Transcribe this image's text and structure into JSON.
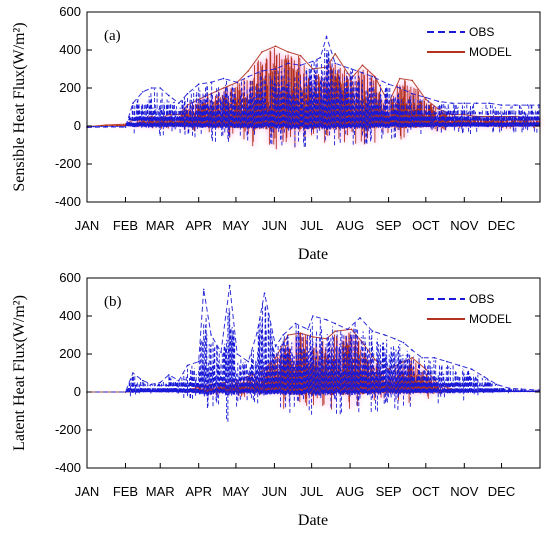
{
  "chart_data": [
    {
      "type": "line",
      "panel_label": "(a)",
      "xlabel": "Date",
      "ylabel": "Sensible Heat Flux(W/m²)",
      "ylim": [
        -400,
        600
      ],
      "yticks": [
        -400,
        -200,
        0,
        200,
        400,
        600
      ],
      "months": [
        "JAN",
        "FEB",
        "MAR",
        "APR",
        "MAY",
        "JUN",
        "JUL",
        "AUG",
        "SEP",
        "OCT",
        "NOV",
        "DEC"
      ],
      "legend": {
        "position": "top-right"
      },
      "series": [
        {
          "name": "OBS",
          "color": "#1a1ad6",
          "style": "dashed",
          "values": [
            [
              0,
              -8
            ],
            [
              15,
              -5
            ],
            [
              31,
              -6
            ],
            [
              37,
              120
            ],
            [
              45,
              180
            ],
            [
              52,
              200
            ],
            [
              59,
              200
            ],
            [
              66,
              160
            ],
            [
              74,
              120
            ],
            [
              81,
              170
            ],
            [
              90,
              220
            ],
            [
              100,
              230
            ],
            [
              110,
              250
            ],
            [
              121,
              230
            ],
            [
              130,
              260
            ],
            [
              141,
              290
            ],
            [
              152,
              300
            ],
            [
              162,
              330
            ],
            [
              172,
              320
            ],
            [
              182,
              340
            ],
            [
              188,
              360
            ],
            [
              193,
              470
            ],
            [
              200,
              330
            ],
            [
              213,
              300
            ],
            [
              222,
              280
            ],
            [
              230,
              260
            ],
            [
              243,
              220
            ],
            [
              252,
              200
            ],
            [
              262,
              170
            ],
            [
              273,
              150
            ],
            [
              283,
              130
            ],
            [
              294,
              120
            ],
            [
              304,
              120
            ],
            [
              314,
              120
            ],
            [
              324,
              120
            ],
            [
              334,
              110
            ],
            [
              345,
              110
            ],
            [
              355,
              110
            ],
            [
              364,
              110
            ]
          ]
        },
        {
          "name": "MODEL",
          "color": "#b4321e",
          "style": "solid",
          "values": [
            [
              0,
              -4
            ],
            [
              15,
              5
            ],
            [
              31,
              10
            ],
            [
              37,
              30
            ],
            [
              45,
              40
            ],
            [
              52,
              50
            ],
            [
              59,
              40
            ],
            [
              66,
              60
            ],
            [
              74,
              60
            ],
            [
              81,
              110
            ],
            [
              90,
              140
            ],
            [
              100,
              170
            ],
            [
              110,
              200
            ],
            [
              121,
              230
            ],
            [
              130,
              290
            ],
            [
              141,
              390
            ],
            [
              152,
              420
            ],
            [
              162,
              390
            ],
            [
              172,
              370
            ],
            [
              182,
              300
            ],
            [
              193,
              310
            ],
            [
              200,
              380
            ],
            [
              213,
              250
            ],
            [
              222,
              320
            ],
            [
              232,
              260
            ],
            [
              243,
              120
            ],
            [
              252,
              250
            ],
            [
              262,
              240
            ],
            [
              273,
              140
            ],
            [
              283,
              90
            ],
            [
              294,
              60
            ],
            [
              304,
              60
            ],
            [
              314,
              50
            ],
            [
              324,
              50
            ],
            [
              334,
              50
            ],
            [
              345,
              50
            ],
            [
              355,
              45
            ],
            [
              364,
              40
            ]
          ]
        }
      ]
    },
    {
      "type": "line",
      "panel_label": "(b)",
      "xlabel": "Date",
      "ylabel": "Latent Heat Flux(W/m²)",
      "ylim": [
        -400,
        600
      ],
      "yticks": [
        -400,
        -200,
        0,
        200,
        400,
        600
      ],
      "months": [
        "JAN",
        "FEB",
        "MAR",
        "APR",
        "MAY",
        "JUN",
        "JUL",
        "AUG",
        "SEP",
        "OCT",
        "NOV",
        "DEC"
      ],
      "legend": {
        "position": "top-right"
      },
      "series": [
        {
          "name": "OBS",
          "color": "#1a1ad6",
          "style": "dashed",
          "values": [
            [
              0,
              0
            ],
            [
              31,
              0
            ],
            [
              37,
              100
            ],
            [
              45,
              60
            ],
            [
              52,
              40
            ],
            [
              59,
              50
            ],
            [
              66,
              90
            ],
            [
              74,
              60
            ],
            [
              81,
              140
            ],
            [
              90,
              160
            ],
            [
              94,
              540
            ],
            [
              100,
              300
            ],
            [
              108,
              210
            ],
            [
              115,
              560
            ],
            [
              121,
              200
            ],
            [
              130,
              160
            ],
            [
              137,
              310
            ],
            [
              143,
              520
            ],
            [
              152,
              240
            ],
            [
              158,
              300
            ],
            [
              168,
              360
            ],
            [
              178,
              330
            ],
            [
              182,
              400
            ],
            [
              193,
              380
            ],
            [
              200,
              360
            ],
            [
              210,
              330
            ],
            [
              220,
              390
            ],
            [
              230,
              320
            ],
            [
              240,
              300
            ],
            [
              248,
              280
            ],
            [
              255,
              260
            ],
            [
              262,
              220
            ],
            [
              270,
              180
            ],
            [
              280,
              180
            ],
            [
              290,
              160
            ],
            [
              300,
              140
            ],
            [
              310,
              120
            ],
            [
              320,
              80
            ],
            [
              330,
              40
            ],
            [
              340,
              20
            ],
            [
              350,
              15
            ],
            [
              364,
              10
            ]
          ]
        },
        {
          "name": "MODEL",
          "color": "#b4321e",
          "style": "solid",
          "values": [
            [
              0,
              0
            ],
            [
              31,
              0
            ],
            [
              40,
              2
            ],
            [
              59,
              5
            ],
            [
              80,
              10
            ],
            [
              100,
              40
            ],
            [
              121,
              60
            ],
            [
              141,
              110
            ],
            [
              152,
              180
            ],
            [
              162,
              300
            ],
            [
              172,
              310
            ],
            [
              182,
              290
            ],
            [
              193,
              280
            ],
            [
              200,
              320
            ],
            [
              213,
              330
            ],
            [
              222,
              260
            ],
            [
              232,
              170
            ],
            [
              243,
              120
            ],
            [
              252,
              150
            ],
            [
              262,
              180
            ],
            [
              273,
              120
            ],
            [
              283,
              40
            ],
            [
              294,
              15
            ],
            [
              304,
              10
            ],
            [
              314,
              5
            ],
            [
              334,
              5
            ],
            [
              364,
              5
            ]
          ]
        }
      ]
    }
  ]
}
